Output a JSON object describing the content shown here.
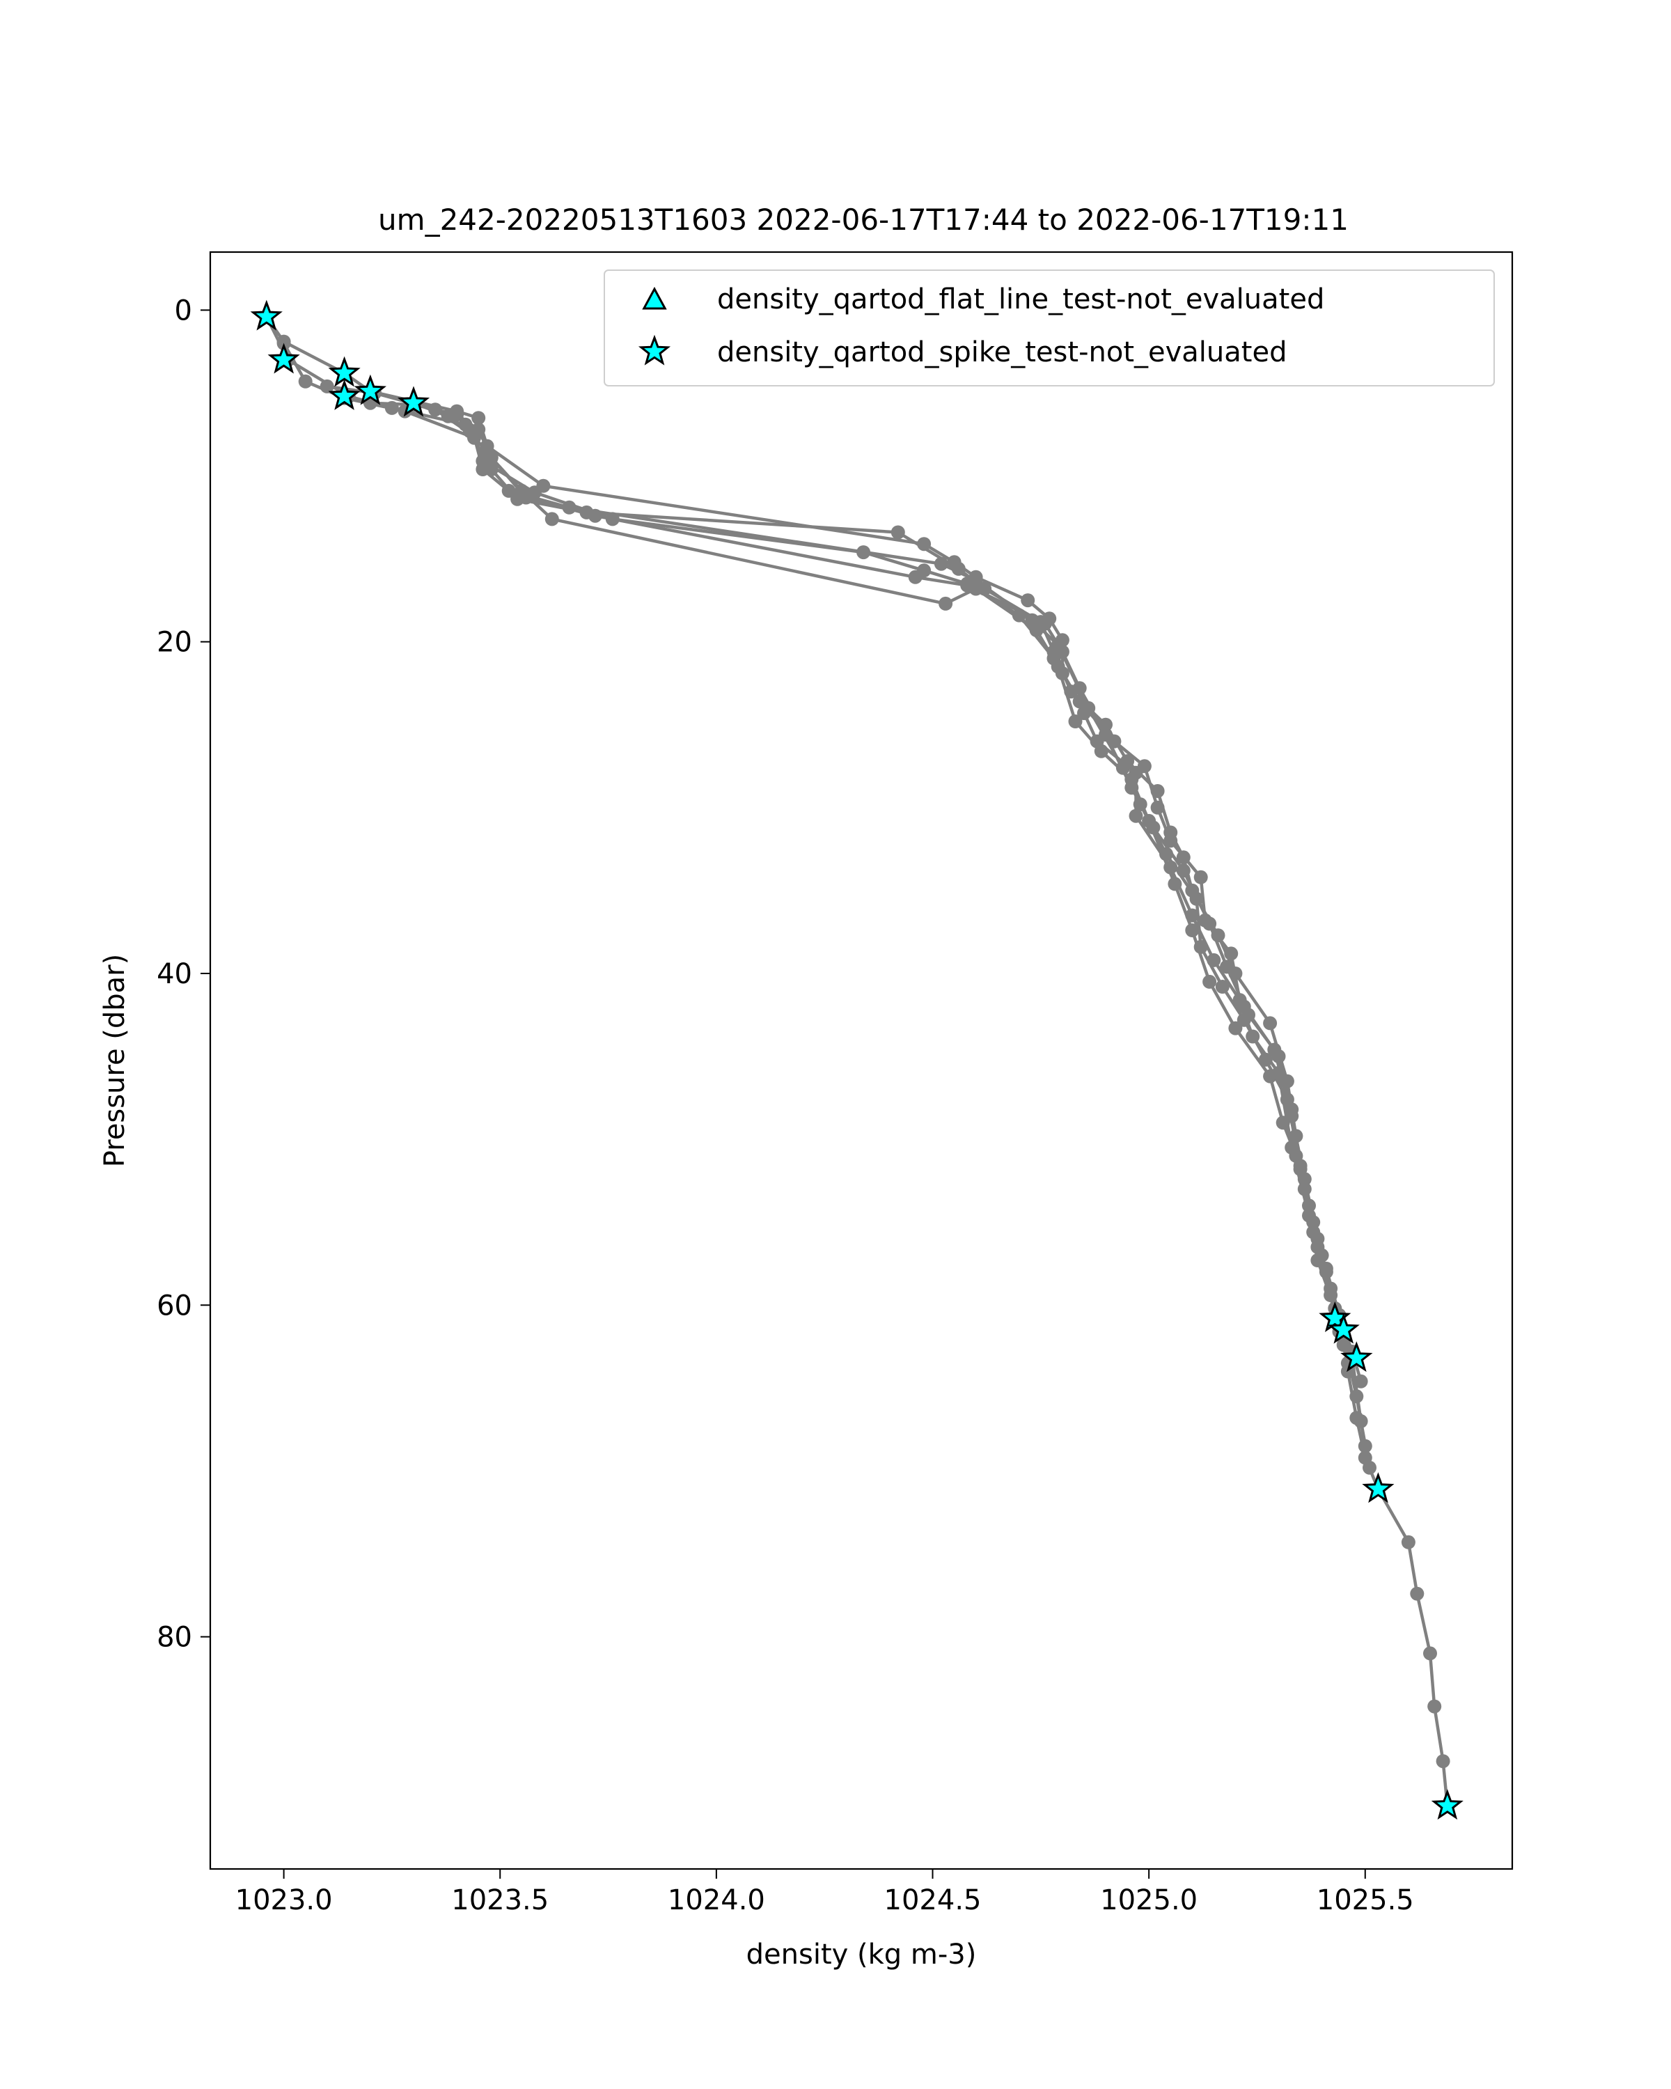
{
  "chart_data": {
    "type": "line",
    "title": "um_242-20220513T1603 2022-06-17T17:44 to 2022-06-17T19:11",
    "xlabel": "density (kg m-3)",
    "ylabel": "Pressure (dbar)",
    "xlim": [
      1022.83,
      1025.84
    ],
    "ylim": [
      94.0,
      -3.5
    ],
    "y_inverted": true,
    "grid": false,
    "legend_position": "upper right",
    "x_ticks": [
      "1023.0",
      "1023.5",
      "1024.0",
      "1024.5",
      "1025.0",
      "1025.5"
    ],
    "y_ticks": [
      "0",
      "20",
      "40",
      "60",
      "80"
    ],
    "colors": {
      "profile_line": "#808080",
      "flag_fill": "#00ffff",
      "flag_edge": "#000000"
    },
    "legend": [
      {
        "label": "density_qartod_flat_line_test-not_evaluated",
        "marker": "triangle"
      },
      {
        "label": "density_qartod_spike_test-not_evaluated",
        "marker": "star"
      }
    ],
    "profiles": [
      [
        [
          1022.96,
          0.4
        ],
        [
          1023.0,
          1.9
        ],
        [
          1023.14,
          3.8
        ],
        [
          1023.2,
          4.9
        ],
        [
          1023.4,
          6.1
        ],
        [
          1023.45,
          6.5
        ],
        [
          1023.47,
          8.2
        ],
        [
          1023.6,
          10.6
        ],
        [
          1024.48,
          14.1
        ],
        [
          1024.55,
          15.2
        ],
        [
          1024.6,
          16.1
        ],
        [
          1024.72,
          17.5
        ],
        [
          1024.77,
          18.6
        ],
        [
          1024.8,
          19.9
        ],
        [
          1024.8,
          21.9
        ],
        [
          1024.85,
          24.3
        ],
        [
          1024.88,
          26.0
        ],
        [
          1024.97,
          27.9
        ],
        [
          1024.97,
          30.5
        ],
        [
          1025.05,
          33.6
        ],
        [
          1025.1,
          36.5
        ],
        [
          1025.15,
          39.2
        ],
        [
          1025.22,
          42.0
        ],
        [
          1025.3,
          45.0
        ],
        [
          1025.33,
          48.2
        ],
        [
          1025.35,
          51.8
        ],
        [
          1025.38,
          55.0
        ],
        [
          1025.41,
          58.0
        ],
        [
          1025.43,
          60.8
        ],
        [
          1025.45,
          61.5
        ],
        [
          1025.46,
          64.0
        ],
        [
          1025.48,
          66.8
        ],
        [
          1025.5,
          69.2
        ],
        [
          1025.53,
          71.1
        ],
        [
          1025.6,
          74.3
        ],
        [
          1025.62,
          77.4
        ],
        [
          1025.65,
          81.0
        ],
        [
          1025.66,
          84.2
        ],
        [
          1025.68,
          87.5
        ],
        [
          1025.69,
          90.2
        ]
      ],
      [
        [
          1022.96,
          0.4
        ],
        [
          1023.01,
          3.0
        ],
        [
          1023.15,
          5.2
        ],
        [
          1023.25,
          5.9
        ],
        [
          1023.42,
          6.9
        ],
        [
          1023.48,
          9.6
        ],
        [
          1023.54,
          11.4
        ],
        [
          1023.7,
          12.2
        ],
        [
          1024.42,
          13.4
        ],
        [
          1024.56,
          15.6
        ],
        [
          1024.62,
          16.8
        ],
        [
          1024.75,
          18.8
        ],
        [
          1024.78,
          20.6
        ],
        [
          1024.82,
          23.0
        ],
        [
          1024.9,
          25.0
        ],
        [
          1024.95,
          27.2
        ],
        [
          1025.02,
          29.0
        ],
        [
          1025.05,
          31.5
        ],
        [
          1025.08,
          33.0
        ],
        [
          1025.1,
          35.0
        ],
        [
          1025.16,
          37.7
        ],
        [
          1025.2,
          40.0
        ],
        [
          1025.28,
          43.0
        ],
        [
          1025.32,
          46.5
        ],
        [
          1025.34,
          49.8
        ],
        [
          1025.36,
          53.0
        ],
        [
          1025.39,
          56.5
        ],
        [
          1025.42,
          59.4
        ],
        [
          1025.44,
          61.3
        ],
        [
          1025.47,
          63.2
        ],
        [
          1025.49,
          67.0
        ],
        [
          1025.51,
          69.8
        ]
      ],
      [
        [
          1023.0,
          2.0
        ],
        [
          1023.05,
          4.3
        ],
        [
          1023.14,
          5.3
        ],
        [
          1023.28,
          6.1
        ],
        [
          1023.44,
          7.7
        ],
        [
          1023.46,
          9.1
        ],
        [
          1023.58,
          11.0
        ],
        [
          1023.76,
          12.6
        ],
        [
          1024.34,
          14.6
        ],
        [
          1024.48,
          15.7
        ],
        [
          1024.58,
          16.5
        ],
        [
          1024.7,
          18.4
        ],
        [
          1024.78,
          21.0
        ],
        [
          1024.84,
          23.6
        ],
        [
          1024.92,
          26.0
        ],
        [
          1024.99,
          27.5
        ],
        [
          1025.02,
          30.0
        ],
        [
          1025.05,
          32.0
        ],
        [
          1025.12,
          34.2
        ],
        [
          1025.13,
          36.8
        ],
        [
          1025.19,
          38.8
        ],
        [
          1025.21,
          41.6
        ],
        [
          1025.24,
          43.8
        ],
        [
          1025.3,
          46.0
        ],
        [
          1025.33,
          50.5
        ],
        [
          1025.37,
          54.6
        ],
        [
          1025.39,
          57.3
        ],
        [
          1025.43,
          60.2
        ],
        [
          1025.45,
          62.0
        ],
        [
          1025.48,
          65.5
        ],
        [
          1025.5,
          68.5
        ]
      ],
      [
        [
          1023.14,
          5.1
        ],
        [
          1023.2,
          5.6
        ],
        [
          1023.3,
          5.7
        ],
        [
          1023.4,
          6.3
        ],
        [
          1023.45,
          7.2
        ],
        [
          1023.48,
          8.9
        ],
        [
          1023.55,
          10.9
        ],
        [
          1023.62,
          12.6
        ],
        [
          1024.53,
          17.7
        ],
        [
          1024.6,
          16.8
        ],
        [
          1024.74,
          19.3
        ],
        [
          1024.79,
          21.5
        ],
        [
          1024.83,
          24.8
        ],
        [
          1024.89,
          26.6
        ],
        [
          1024.96,
          28.3
        ],
        [
          1025.0,
          30.8
        ],
        [
          1025.06,
          34.6
        ],
        [
          1025.1,
          37.4
        ],
        [
          1025.14,
          40.5
        ],
        [
          1025.2,
          43.3
        ],
        [
          1025.28,
          46.2
        ],
        [
          1025.31,
          49.0
        ],
        [
          1025.34,
          51.0
        ],
        [
          1025.37,
          54.0
        ],
        [
          1025.4,
          57.0
        ],
        [
          1025.44,
          61.6
        ],
        [
          1025.46,
          63.5
        ]
      ],
      [
        [
          1023.1,
          4.6
        ],
        [
          1023.21,
          5.0
        ],
        [
          1023.35,
          6.0
        ],
        [
          1023.44,
          7.6
        ],
        [
          1023.46,
          9.6
        ],
        [
          1023.52,
          10.9
        ],
        [
          1023.66,
          11.9
        ],
        [
          1024.52,
          15.3
        ],
        [
          1024.6,
          16.3
        ],
        [
          1024.73,
          18.7
        ],
        [
          1024.79,
          20.2
        ],
        [
          1024.86,
          24.0
        ],
        [
          1024.94,
          27.6
        ],
        [
          1024.98,
          29.8
        ],
        [
          1025.04,
          32.8
        ],
        [
          1025.11,
          35.5
        ],
        [
          1025.12,
          38.4
        ],
        [
          1025.17,
          40.8
        ],
        [
          1025.22,
          42.8
        ],
        [
          1025.27,
          45.2
        ],
        [
          1025.32,
          47.6
        ],
        [
          1025.35,
          51.6
        ],
        [
          1025.38,
          55.6
        ],
        [
          1025.41,
          57.8
        ],
        [
          1025.44,
          60.6
        ],
        [
          1025.47,
          62.8
        ],
        [
          1025.49,
          64.6
        ]
      ],
      [
        [
          1023.3,
          5.6
        ],
        [
          1023.38,
          6.4
        ],
        [
          1023.43,
          7.3
        ],
        [
          1023.47,
          8.6
        ],
        [
          1023.56,
          11.3
        ],
        [
          1023.72,
          12.4
        ],
        [
          1024.46,
          16.1
        ],
        [
          1024.58,
          16.6
        ],
        [
          1024.76,
          18.9
        ],
        [
          1024.8,
          20.6
        ],
        [
          1024.84,
          22.8
        ],
        [
          1024.9,
          25.6
        ],
        [
          1024.96,
          28.8
        ],
        [
          1025.01,
          31.2
        ],
        [
          1025.08,
          33.8
        ],
        [
          1025.14,
          37.0
        ],
        [
          1025.18,
          39.6
        ],
        [
          1025.23,
          42.5
        ],
        [
          1025.29,
          44.6
        ],
        [
          1025.33,
          48.6
        ],
        [
          1025.36,
          52.4
        ],
        [
          1025.39,
          56.0
        ],
        [
          1025.42,
          59.0
        ],
        [
          1025.45,
          62.4
        ]
      ]
    ],
    "spike_test_flags": [
      {
        "x": 1022.96,
        "y": 0.4
      },
      {
        "x": 1023.0,
        "y": 3.0
      },
      {
        "x": 1023.14,
        "y": 3.8
      },
      {
        "x": 1023.14,
        "y": 5.2
      },
      {
        "x": 1023.2,
        "y": 4.9
      },
      {
        "x": 1023.3,
        "y": 5.6
      },
      {
        "x": 1025.43,
        "y": 60.8
      },
      {
        "x": 1025.45,
        "y": 61.5
      },
      {
        "x": 1025.48,
        "y": 63.2
      },
      {
        "x": 1025.53,
        "y": 71.1
      },
      {
        "x": 1025.69,
        "y": 90.2
      }
    ],
    "flat_line_test_flags": []
  }
}
